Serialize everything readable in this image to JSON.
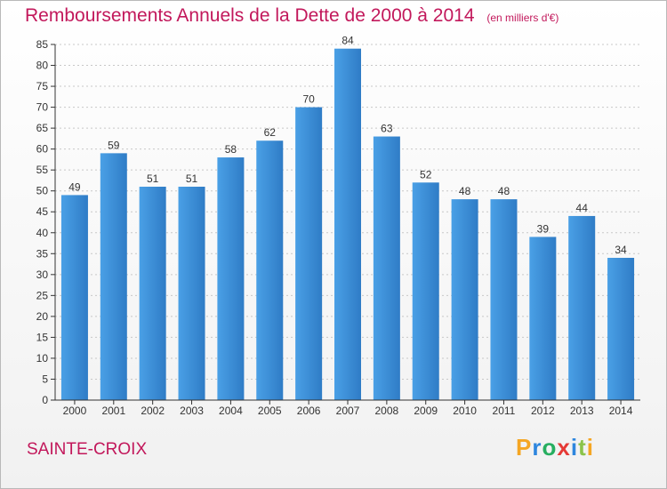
{
  "title": "Remboursements Annuels de la Dette de 2000 à 2014",
  "subtitle": "(en milliers d'€)",
  "commune": "SAINTE-CROIX",
  "logo_text": "Proxiti",
  "colors": {
    "bar": "#3b8fd9",
    "bar_dark": "#2f7cc6",
    "title": "#c2185b",
    "grid": "#c8c8c8"
  },
  "chart_data": {
    "type": "bar",
    "categories": [
      "2000",
      "2001",
      "2002",
      "2003",
      "2004",
      "2005",
      "2006",
      "2007",
      "2008",
      "2009",
      "2010",
      "2011",
      "2012",
      "2013",
      "2014"
    ],
    "values": [
      49,
      59,
      51,
      51,
      58,
      62,
      70,
      84,
      63,
      52,
      48,
      48,
      39,
      44,
      34
    ],
    "ylim": [
      0,
      85
    ],
    "yticks": [
      0,
      5,
      10,
      15,
      20,
      25,
      30,
      35,
      40,
      45,
      50,
      55,
      60,
      65,
      70,
      75,
      80,
      85
    ],
    "grid": true
  }
}
